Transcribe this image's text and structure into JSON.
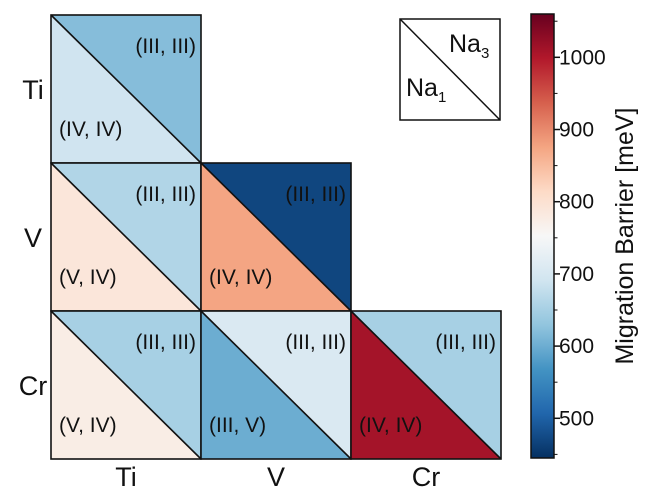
{
  "chart_data": {
    "type": "heatmap",
    "rows": [
      "Ti",
      "V",
      "Cr"
    ],
    "columns": [
      "Ti",
      "V",
      "Cr"
    ],
    "legend": {
      "upper": "Na",
      "upper_sub": "3",
      "lower": "Na",
      "lower_sub": "1"
    },
    "colorbar": {
      "label": "Migration Barrier [meV]",
      "range": [
        445,
        1060
      ],
      "ticks": [
        500,
        600,
        700,
        800,
        900,
        1000
      ],
      "tick_labels": [
        "500",
        "600",
        "700",
        "800",
        "900",
        "1000"
      ]
    },
    "cells": [
      {
        "row": "Ti",
        "col": "Ti",
        "upper": {
          "label": "(III, III)",
          "value": 620
        },
        "lower": {
          "label": "(IV, IV)",
          "value": 690
        }
      },
      {
        "row": "V",
        "col": "Ti",
        "upper": {
          "label": "(III, III)",
          "value": 660
        },
        "lower": {
          "label": "(V, IV)",
          "value": 790
        }
      },
      {
        "row": "V",
        "col": "V",
        "upper": {
          "label": "(III, III)",
          "value": 470
        },
        "lower": {
          "label": "(IV, IV)",
          "value": 875
        }
      },
      {
        "row": "Cr",
        "col": "Ti",
        "upper": {
          "label": "(III, III)",
          "value": 650
        },
        "lower": {
          "label": "(V, IV)",
          "value": 775
        }
      },
      {
        "row": "Cr",
        "col": "V",
        "upper": {
          "label": "(III, III)",
          "value": 705
        },
        "lower": {
          "label": "(III, V)",
          "value": 600
        }
      },
      {
        "row": "Cr",
        "col": "Cr",
        "upper": {
          "label": "(III, III)",
          "value": 650
        },
        "lower": {
          "label": "(IV, IV)",
          "value": 1010
        }
      }
    ]
  }
}
